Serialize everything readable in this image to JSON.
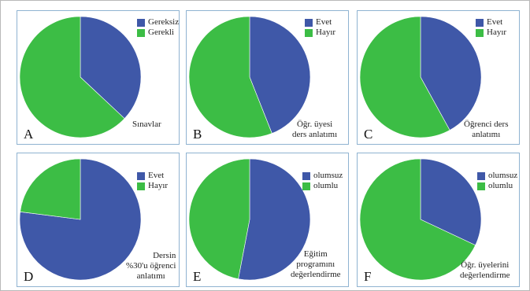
{
  "colors": {
    "blue": "#3f58a8",
    "green": "#3cbd45",
    "border": "#8fb3d1"
  },
  "chart_data": [
    {
      "type": "pie",
      "panel_letter": "A",
      "caption": [
        "Sınavlar"
      ],
      "categories": [
        "Gereksiz",
        "Gerekli"
      ],
      "values": [
        37,
        63
      ],
      "colors": [
        "#3f58a8",
        "#3cbd45"
      ]
    },
    {
      "type": "pie",
      "panel_letter": "B",
      "caption": [
        "Öğr. üyesi",
        "ders anlatımı"
      ],
      "categories": [
        "Evet",
        "Hayır"
      ],
      "values": [
        44,
        56
      ],
      "colors": [
        "#3f58a8",
        "#3cbd45"
      ]
    },
    {
      "type": "pie",
      "panel_letter": "C",
      "caption": [
        "Öğrenci ders",
        "anlatımı"
      ],
      "categories": [
        "Evet",
        "Hayır"
      ],
      "values": [
        42,
        58
      ],
      "colors": [
        "#3f58a8",
        "#3cbd45"
      ]
    },
    {
      "type": "pie",
      "panel_letter": "D",
      "caption": [
        "Dersin",
        "%30'u öğrenci",
        "anlatımı"
      ],
      "categories": [
        "Evet",
        "Hayır"
      ],
      "values": [
        77,
        23
      ],
      "colors": [
        "#3f58a8",
        "#3cbd45"
      ]
    },
    {
      "type": "pie",
      "panel_letter": "E",
      "caption": [
        "Eğitim",
        "programını",
        "değerlendirme"
      ],
      "categories": [
        "olumsuz",
        "olumlu"
      ],
      "values": [
        53,
        47
      ],
      "colors": [
        "#3f58a8",
        "#3cbd45"
      ]
    },
    {
      "type": "pie",
      "panel_letter": "F",
      "caption": [
        "Öğr. üyelerini",
        "değerlendirme"
      ],
      "categories": [
        "olumsuz",
        "olumlu"
      ],
      "values": [
        32,
        68
      ],
      "colors": [
        "#3f58a8",
        "#3cbd45"
      ]
    }
  ]
}
